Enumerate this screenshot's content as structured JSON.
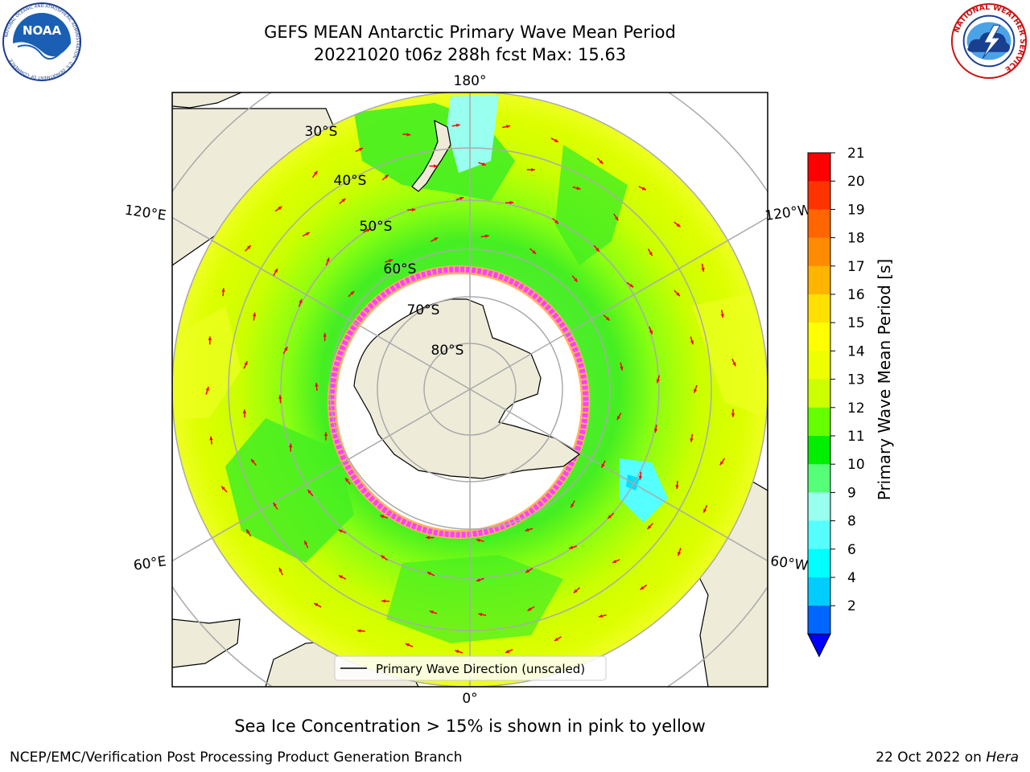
{
  "header": {
    "title_line1": "GEFS MEAN Antarctic Primary Wave Mean Period",
    "title_line2": "20221020 t06z 288h fcst   Max: 15.63"
  },
  "logos": {
    "noaa": {
      "text": "NOAA",
      "ring_text": "NATIONAL OCEANIC AND ATMOSPHERIC ADMINISTRATION · U.S. DEPARTMENT OF COMMERCE"
    },
    "nws": {
      "ring_text": "NATIONAL WEATHER SERVICE"
    }
  },
  "map": {
    "projection": "south-polar-stereographic",
    "longitude_labels": [
      "180°",
      "120°E",
      "120°W",
      "60°E",
      "60°W",
      "0°"
    ],
    "latitude_labels": [
      "30°S",
      "40°S",
      "50°S",
      "60°S",
      "70°S",
      "80°S"
    ],
    "legend_label": "Primary Wave Direction (unscaled)",
    "arrow_color": "#ff0000",
    "land_color": "#eeecd9",
    "ice_edge_colors": [
      "#ff40ff",
      "#ffb060",
      "#ffff80"
    ]
  },
  "colorbar": {
    "label": "Primary Wave Mean Period [s]",
    "ticks": [
      "21",
      "20",
      "19",
      "18",
      "17",
      "16",
      "15",
      "14",
      "13",
      "12",
      "11",
      "10",
      "9",
      "8",
      "6",
      "4",
      "2"
    ],
    "colors": [
      "#ff0000",
      "#ff3300",
      "#ff6600",
      "#ff8c00",
      "#ffb400",
      "#ffe000",
      "#ffff00",
      "#eeff00",
      "#ccff00",
      "#66ff00",
      "#00ee00",
      "#55ff77",
      "#99ffee",
      "#55ffff",
      "#00ffff",
      "#00ccff",
      "#0066ff"
    ],
    "extend_color": "#0000ff"
  },
  "footnote": "Sea Ice Concentration > 15% is shown in pink to yellow",
  "footer": {
    "left": "NCEP/EMC/Verification Post Processing Product Generation Branch",
    "right_date": "22 Oct 2022 on",
    "right_host": "Hera"
  }
}
